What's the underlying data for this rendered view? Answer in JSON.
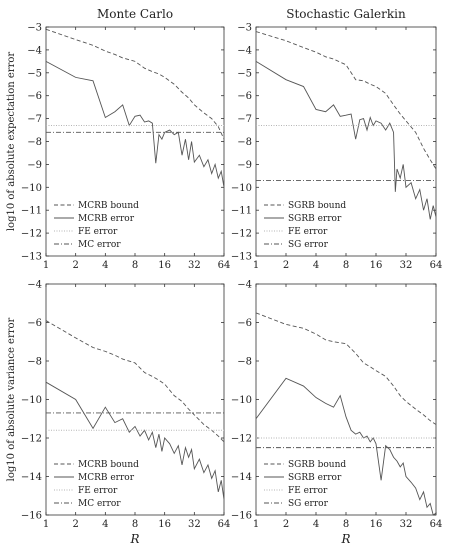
{
  "chart_data": [
    {
      "type": "line",
      "title": "Monte Carlo",
      "ylabel": "log10 of absolute expectation error",
      "xlabel": "",
      "x_scale": "log2",
      "xlim": [
        1,
        64
      ],
      "ylim": [
        -13,
        -3
      ],
      "x_ticks": [
        "1",
        "2",
        "4",
        "8",
        "16",
        "32",
        "64"
      ],
      "y_ticks": [
        "-3",
        "-4",
        "-5",
        "-6",
        "-7",
        "-8",
        "-9",
        "-10",
        "-11",
        "-12",
        "-13"
      ],
      "legend_position": "bottom-left",
      "series": [
        {
          "name": "MCRB bound",
          "style": "dashed",
          "x": [
            1,
            2,
            3,
            4,
            5,
            6,
            8,
            10,
            12,
            14,
            16,
            20,
            24,
            28,
            32,
            40,
            48,
            56,
            64
          ],
          "y": [
            -3.1,
            -3.55,
            -3.8,
            -4.05,
            -4.2,
            -4.35,
            -4.5,
            -4.8,
            -4.95,
            -5.05,
            -5.2,
            -5.5,
            -5.85,
            -6.1,
            -6.4,
            -6.75,
            -7.0,
            -7.35,
            -7.9
          ]
        },
        {
          "name": "MCRB error",
          "style": "solid",
          "x": [
            1,
            2,
            3,
            4,
            5,
            6,
            7,
            8,
            9,
            10,
            11,
            12,
            13,
            14,
            15,
            16,
            18,
            20,
            22,
            24,
            26,
            28,
            30,
            32,
            36,
            40,
            44,
            48,
            52,
            56,
            60,
            64
          ],
          "y": [
            -4.5,
            -5.2,
            -5.35,
            -6.95,
            -6.7,
            -6.4,
            -7.3,
            -6.9,
            -6.85,
            -7.15,
            -7.1,
            -7.2,
            -8.95,
            -7.7,
            -7.9,
            -7.6,
            -7.5,
            -7.7,
            -7.6,
            -8.6,
            -7.9,
            -8.8,
            -8.0,
            -8.9,
            -8.6,
            -9.1,
            -8.8,
            -9.4,
            -9.0,
            -9.6,
            -9.3,
            -10.0
          ]
        },
        {
          "name": "FE error",
          "style": "dotted",
          "x": [
            1,
            64
          ],
          "y": [
            -7.3,
            -7.3
          ]
        },
        {
          "name": "MC error",
          "style": "dash-dot",
          "x": [
            1,
            64
          ],
          "y": [
            -7.6,
            -7.6
          ]
        }
      ]
    },
    {
      "type": "line",
      "title": "Stochastic Galerkin",
      "ylabel": "",
      "xlabel": "",
      "x_scale": "log2",
      "xlim": [
        1,
        64
      ],
      "ylim": [
        -13,
        -3
      ],
      "x_ticks": [
        "1",
        "2",
        "4",
        "8",
        "16",
        "32",
        "64"
      ],
      "y_ticks": [
        "-3",
        "-4",
        "-5",
        "-6",
        "-7",
        "-8",
        "-9",
        "-10",
        "-11",
        "-12",
        "-13"
      ],
      "legend_position": "bottom-left",
      "series": [
        {
          "name": "SGRB bound",
          "style": "dashed",
          "x": [
            1,
            2,
            3,
            4,
            5,
            6,
            8,
            10,
            12,
            14,
            16,
            20,
            24,
            28,
            32,
            40,
            48,
            56,
            64
          ],
          "y": [
            -3.2,
            -3.6,
            -3.9,
            -4.1,
            -4.3,
            -4.4,
            -4.65,
            -5.3,
            -5.35,
            -5.5,
            -5.6,
            -5.9,
            -6.4,
            -6.8,
            -7.1,
            -7.6,
            -8.3,
            -8.8,
            -9.2
          ]
        },
        {
          "name": "SGRB error",
          "style": "solid",
          "x": [
            1,
            2,
            3,
            4,
            5,
            6,
            7,
            8,
            9,
            10,
            11,
            12,
            13,
            14,
            15,
            16,
            18,
            20,
            22,
            24,
            25,
            26,
            28,
            30,
            32,
            36,
            40,
            44,
            48,
            52,
            56,
            60,
            64
          ],
          "y": [
            -4.5,
            -5.3,
            -5.6,
            -6.6,
            -6.7,
            -6.4,
            -6.9,
            -6.85,
            -6.8,
            -7.9,
            -7.05,
            -7.0,
            -7.5,
            -6.95,
            -7.3,
            -7.1,
            -7.2,
            -7.5,
            -7.2,
            -7.6,
            -10.2,
            -9.2,
            -9.6,
            -9.0,
            -10.0,
            -9.8,
            -10.5,
            -10.1,
            -11.0,
            -10.5,
            -11.4,
            -10.8,
            -11.3
          ]
        },
        {
          "name": "FE error",
          "style": "dotted",
          "x": [
            1,
            64
          ],
          "y": [
            -7.3,
            -7.3
          ]
        },
        {
          "name": "SG error",
          "style": "dash-dot",
          "x": [
            1,
            64
          ],
          "y": [
            -9.7,
            -9.7
          ]
        }
      ]
    },
    {
      "type": "line",
      "title": "",
      "ylabel": "log10 of absolute variance error",
      "xlabel": "R",
      "x_scale": "log2",
      "xlim": [
        1,
        64
      ],
      "ylim": [
        -16,
        -4
      ],
      "x_ticks": [
        "1",
        "2",
        "4",
        "8",
        "16",
        "32",
        "64"
      ],
      "y_ticks": [
        "-4",
        "-6",
        "-8",
        "-10",
        "-12",
        "-14",
        "-16"
      ],
      "legend_position": "bottom-left",
      "series": [
        {
          "name": "MCRB bound",
          "style": "dashed",
          "x": [
            1,
            2,
            3,
            4,
            5,
            6,
            8,
            10,
            12,
            14,
            16,
            20,
            24,
            28,
            32,
            40,
            48,
            56,
            64
          ],
          "y": [
            -5.9,
            -6.8,
            -7.3,
            -7.5,
            -7.7,
            -7.9,
            -8.1,
            -8.6,
            -8.8,
            -9.0,
            -9.2,
            -9.8,
            -10.1,
            -10.5,
            -10.8,
            -11.3,
            -11.6,
            -11.9,
            -12.2
          ]
        },
        {
          "name": "MCRB error",
          "style": "solid",
          "x": [
            1,
            2,
            3,
            4,
            5,
            6,
            7,
            8,
            9,
            10,
            11,
            12,
            13,
            14,
            15,
            16,
            18,
            20,
            22,
            24,
            26,
            28,
            30,
            32,
            36,
            40,
            44,
            48,
            52,
            56,
            60,
            64
          ],
          "y": [
            -9.1,
            -10.0,
            -11.5,
            -10.4,
            -11.2,
            -11.0,
            -11.7,
            -11.4,
            -11.9,
            -11.6,
            -12.1,
            -11.7,
            -12.5,
            -11.8,
            -12.7,
            -12.0,
            -12.3,
            -12.8,
            -12.4,
            -13.4,
            -12.5,
            -13.0,
            -12.6,
            -13.6,
            -13.1,
            -13.8,
            -13.4,
            -14.1,
            -13.7,
            -14.8,
            -14.2,
            -15.2
          ]
        },
        {
          "name": "FE error",
          "style": "dotted",
          "x": [
            1,
            64
          ],
          "y": [
            -11.6,
            -11.6
          ]
        },
        {
          "name": "MC error",
          "style": "dash-dot",
          "x": [
            1,
            64
          ],
          "y": [
            -10.7,
            -10.7
          ]
        }
      ]
    },
    {
      "type": "line",
      "title": "",
      "ylabel": "",
      "xlabel": "R",
      "x_scale": "log2",
      "xlim": [
        1,
        64
      ],
      "ylim": [
        -16,
        -4
      ],
      "x_ticks": [
        "1",
        "2",
        "4",
        "8",
        "16",
        "32",
        "64"
      ],
      "y_ticks": [
        "-4",
        "-6",
        "-8",
        "-10",
        "-12",
        "-14",
        "-16"
      ],
      "legend_position": "bottom-left",
      "series": [
        {
          "name": "SGRB bound",
          "style": "dashed",
          "x": [
            1,
            2,
            3,
            4,
            5,
            6,
            8,
            10,
            12,
            14,
            16,
            20,
            24,
            28,
            32,
            40,
            48,
            56,
            64
          ],
          "y": [
            -5.5,
            -6.1,
            -6.3,
            -6.6,
            -6.9,
            -7.0,
            -7.1,
            -7.6,
            -8.1,
            -8.3,
            -8.5,
            -8.8,
            -9.3,
            -9.8,
            -10.1,
            -10.5,
            -10.8,
            -11.1,
            -11.3
          ]
        },
        {
          "name": "SGRB error",
          "style": "solid",
          "x": [
            1,
            2,
            3,
            4,
            5,
            6,
            7,
            8,
            9,
            10,
            11,
            12,
            13,
            14,
            15,
            16,
            18,
            20,
            22,
            24,
            26,
            28,
            30,
            32,
            36,
            40,
            44,
            48,
            52,
            56,
            60,
            64
          ],
          "y": [
            -11.0,
            -8.9,
            -9.3,
            -9.9,
            -10.2,
            -10.4,
            -9.8,
            -10.9,
            -11.6,
            -11.8,
            -11.7,
            -12.0,
            -11.9,
            -12.2,
            -12.0,
            -12.3,
            -14.2,
            -12.4,
            -12.6,
            -13.0,
            -13.2,
            -13.5,
            -13.3,
            -14.0,
            -14.3,
            -14.6,
            -15.2,
            -14.8,
            -15.6,
            -15.4,
            -16.0,
            -15.9
          ]
        },
        {
          "name": "FE error",
          "style": "dotted",
          "x": [
            1,
            64
          ],
          "y": [
            -12.0,
            -12.0
          ]
        },
        {
          "name": "SG error",
          "style": "dash-dot",
          "x": [
            1,
            64
          ],
          "y": [
            -12.5,
            -12.5
          ]
        }
      ]
    }
  ]
}
